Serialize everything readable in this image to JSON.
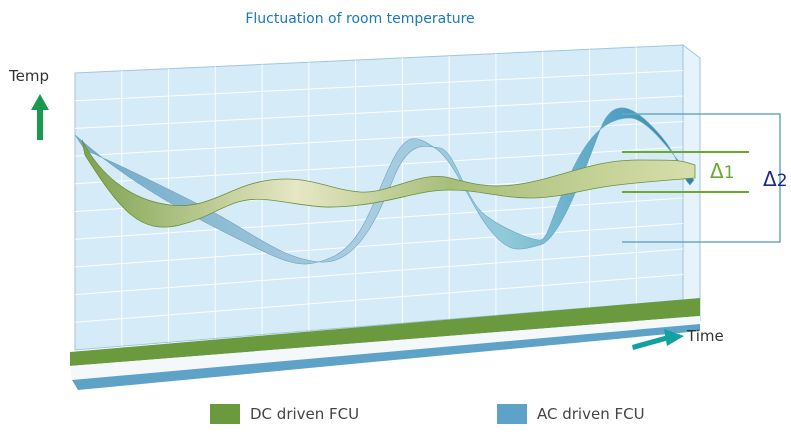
{
  "title": "Fluctuation of room temperature",
  "axes": {
    "y_label": "Temp",
    "x_label": "Time"
  },
  "deltas": [
    {
      "symbol": "Δ",
      "index": "1",
      "color": "#6aa832"
    },
    {
      "symbol": "Δ",
      "index": "2",
      "color": "#1c2a8c"
    }
  ],
  "legend": [
    {
      "name": "DC driven FCU",
      "color": "#6b9a3e"
    },
    {
      "name": "AC driven FCU",
      "color": "#5fa2c8"
    }
  ],
  "colors": {
    "panel_fill": "#d7ecf8",
    "grid": "#ffffff",
    "arrow": "#1a9a50",
    "time_arrow": "#12a0a0",
    "bracket": "#6aaabf",
    "delta1": "#6aa832",
    "delta2": "#1c2a8c"
  }
}
